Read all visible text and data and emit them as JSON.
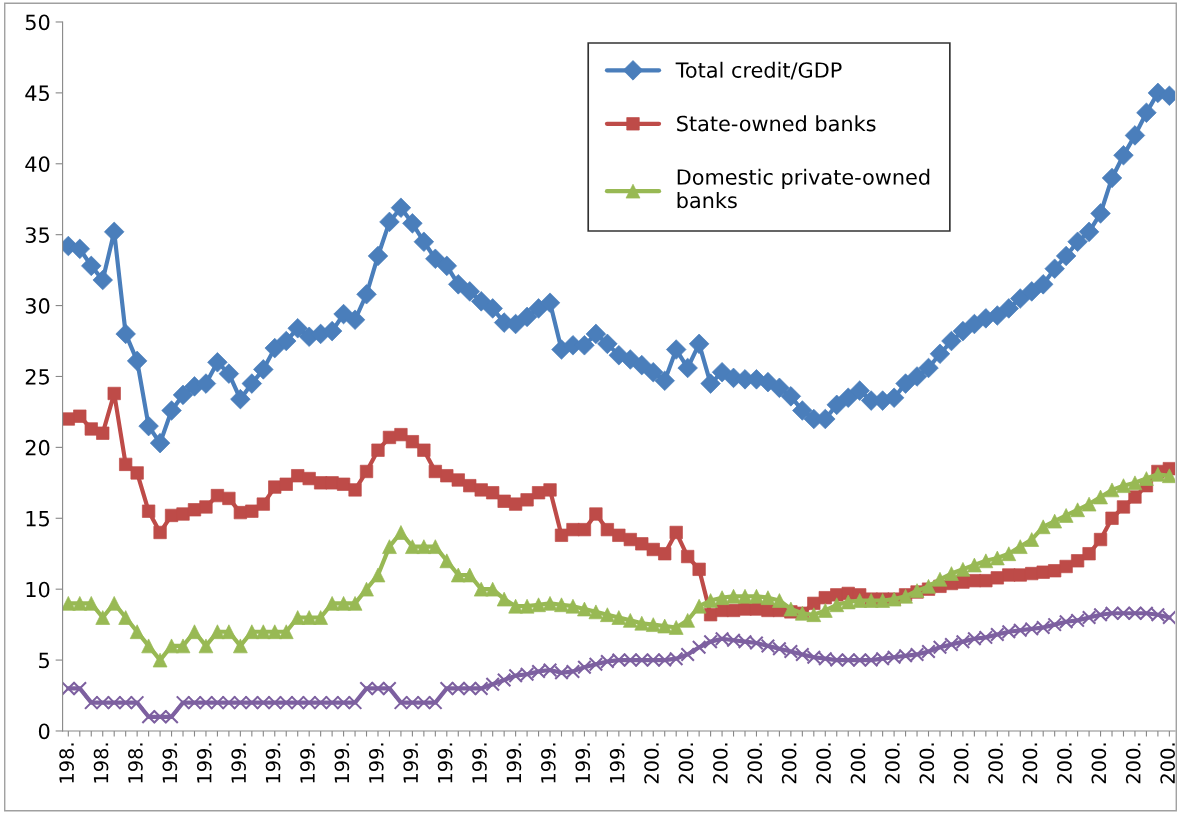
{
  "chart_data": {
    "type": "line",
    "categories": [
      "198.",
      null,
      null,
      "198.",
      null,
      null,
      "198.",
      null,
      null,
      "199.",
      null,
      null,
      "199.",
      null,
      null,
      "199.",
      null,
      null,
      "199.",
      null,
      null,
      "199.",
      null,
      null,
      "199.",
      null,
      null,
      "199.",
      null,
      null,
      "199.",
      null,
      null,
      "199.",
      null,
      null,
      "199.",
      null,
      null,
      "199.",
      null,
      null,
      "199.",
      null,
      null,
      "199.",
      null,
      null,
      "199.",
      null,
      null,
      "200.",
      null,
      null,
      "200.",
      null,
      null,
      "200.",
      null,
      null,
      "200.",
      null,
      null,
      "200.",
      null,
      null,
      "200.",
      null,
      null,
      "200.",
      null,
      null,
      "200.",
      null,
      null,
      "200.",
      null,
      null,
      "200.",
      null,
      null,
      "200.",
      null,
      null,
      "200.",
      null,
      null,
      "200.",
      null,
      null,
      "200.",
      null,
      null,
      "200.",
      null,
      null,
      "200."
    ],
    "series": [
      {
        "name": "Total credit/GDP",
        "color": "#4a7ebb",
        "marker": "diamond",
        "values": [
          34.2,
          34.0,
          32.8,
          31.8,
          35.2,
          28.0,
          26.1,
          21.5,
          20.3,
          22.6,
          23.7,
          24.3,
          24.5,
          26.0,
          25.2,
          23.4,
          24.5,
          25.5,
          27.0,
          27.5,
          28.4,
          27.8,
          28.0,
          28.2,
          29.4,
          29.0,
          30.8,
          33.5,
          35.9,
          36.9,
          35.8,
          34.5,
          33.3,
          32.8,
          31.5,
          31.0,
          30.3,
          29.8,
          28.8,
          28.7,
          29.2,
          29.8,
          30.2,
          26.9,
          27.2,
          27.2,
          28.0,
          27.3,
          26.5,
          26.2,
          25.8,
          25.3,
          24.7,
          26.9,
          25.6,
          27.3,
          24.5,
          25.3,
          24.9,
          24.8,
          24.8,
          24.6,
          24.2,
          23.6,
          22.6,
          22.0,
          22.0,
          23.0,
          23.5,
          24.0,
          23.3,
          23.3,
          23.5,
          24.5,
          25.0,
          25.6,
          26.6,
          27.5,
          28.2,
          28.7,
          29.1,
          29.3,
          29.8,
          30.5,
          31.0,
          31.5,
          32.6,
          33.5,
          34.5,
          35.2,
          36.5,
          39.0,
          40.6,
          42.0,
          43.6,
          45.0,
          44.8
        ]
      },
      {
        "name": "State-owned banks",
        "color": "#be4b48",
        "marker": "square",
        "values": [
          22.0,
          22.2,
          21.3,
          21.0,
          23.8,
          18.8,
          18.2,
          15.5,
          14.0,
          15.2,
          15.3,
          15.6,
          15.8,
          16.6,
          16.4,
          15.4,
          15.5,
          16.0,
          17.2,
          17.4,
          18.0,
          17.8,
          17.5,
          17.5,
          17.4,
          17.0,
          18.3,
          19.8,
          20.7,
          20.9,
          20.4,
          19.8,
          18.3,
          18.0,
          17.7,
          17.3,
          17.0,
          16.8,
          16.2,
          16.0,
          16.3,
          16.8,
          17.0,
          13.8,
          14.2,
          14.2,
          15.3,
          14.2,
          13.8,
          13.5,
          13.2,
          12.8,
          12.5,
          14.0,
          12.3,
          11.4,
          8.2,
          8.5,
          8.5,
          8.6,
          8.6,
          8.5,
          8.5,
          8.4,
          8.3,
          9.0,
          9.4,
          9.6,
          9.7,
          9.6,
          9.3,
          9.3,
          9.3,
          9.6,
          9.8,
          10.0,
          10.2,
          10.4,
          10.5,
          10.6,
          10.6,
          10.8,
          11.0,
          11.0,
          11.1,
          11.2,
          11.3,
          11.6,
          12.0,
          12.5,
          13.5,
          15.0,
          15.8,
          16.5,
          17.3,
          18.3,
          18.5
        ]
      },
      {
        "name": "Domestic private-owned banks",
        "color": "#98b954",
        "marker": "triangle",
        "values": [
          9,
          9,
          9,
          8,
          9,
          8,
          7,
          6,
          5,
          6,
          6,
          7,
          6,
          7,
          7,
          6,
          7,
          7,
          7,
          7,
          8,
          8,
          8,
          9,
          9,
          9,
          10,
          11,
          13,
          14,
          13,
          13,
          13,
          12,
          11,
          11,
          10,
          10,
          9.3,
          8.8,
          8.8,
          8.9,
          9.0,
          8.9,
          8.8,
          8.6,
          8.4,
          8.2,
          8.0,
          7.8,
          7.6,
          7.5,
          7.4,
          7.3,
          7.8,
          8.8,
          9.2,
          9.4,
          9.5,
          9.5,
          9.5,
          9.4,
          9.2,
          8.6,
          8.3,
          8.2,
          8.5,
          8.9,
          9.1,
          9.2,
          9.2,
          9.2,
          9.3,
          9.5,
          9.9,
          10.2,
          10.7,
          11.1,
          11.4,
          11.7,
          12.0,
          12.2,
          12.5,
          13.0,
          13.5,
          14.4,
          14.8,
          15.2,
          15.6,
          16.0,
          16.5,
          17.0,
          17.3,
          17.5,
          17.8,
          18.1,
          18.0
        ]
      },
      {
        "color": "#7d60a0",
        "marker": "cross",
        "values": [
          3,
          3,
          2,
          2,
          2,
          2,
          2,
          1,
          1,
          1,
          2,
          2,
          2,
          2,
          2,
          2,
          2,
          2,
          2,
          2,
          2,
          2,
          2,
          2,
          2,
          2,
          3,
          3,
          3,
          2,
          2,
          2,
          2,
          3,
          3,
          3,
          3,
          3.3,
          3.6,
          3.9,
          4.0,
          4.2,
          4.3,
          4.1,
          4.2,
          4.5,
          4.7,
          4.9,
          5.0,
          5.0,
          5.0,
          5.0,
          5.0,
          5.1,
          5.4,
          5.9,
          6.3,
          6.5,
          6.4,
          6.3,
          6.2,
          6.0,
          5.8,
          5.6,
          5.4,
          5.2,
          5.1,
          5.0,
          5.0,
          5.0,
          5.0,
          5.1,
          5.2,
          5.3,
          5.4,
          5.6,
          5.9,
          6.1,
          6.3,
          6.5,
          6.6,
          6.8,
          7.0,
          7.1,
          7.2,
          7.3,
          7.5,
          7.7,
          7.8,
          8.0,
          8.2,
          8.3,
          8.3,
          8.3,
          8.3,
          8.2,
          8.0
        ]
      }
    ],
    "ylim": [
      0,
      50
    ],
    "yticks": [
      0,
      5,
      10,
      15,
      20,
      25,
      30,
      35,
      40,
      45,
      50
    ],
    "legend": "top",
    "line_style": "solid"
  }
}
